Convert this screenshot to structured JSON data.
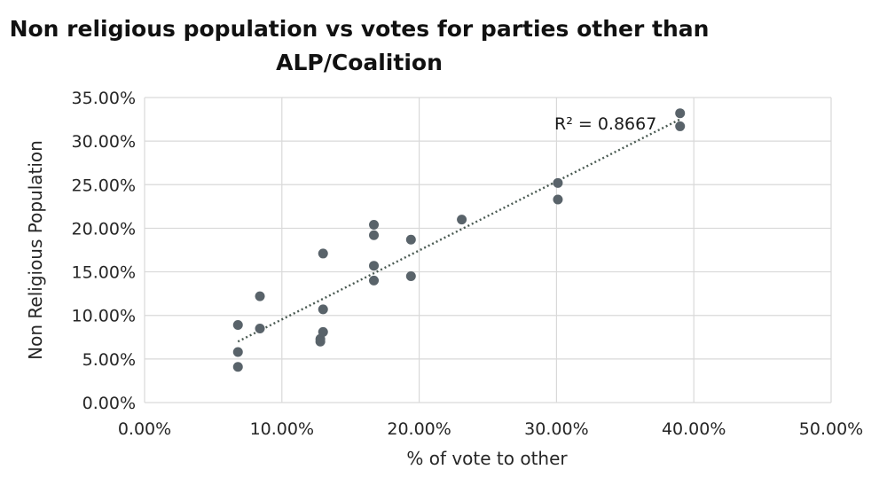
{
  "chart_data": {
    "type": "scatter",
    "title_line1": "Non religious population vs votes for parties other than",
    "title_line2": "ALP/Coalition",
    "xlabel": "% of vote to other",
    "ylabel": "Non Religious Population",
    "xlim": [
      0,
      50
    ],
    "ylim": [
      0,
      35
    ],
    "x_ticks": [
      "0.00%",
      "10.00%",
      "20.00%",
      "30.00%",
      "40.00%",
      "50.00%"
    ],
    "y_ticks": [
      "0.00%",
      "5.00%",
      "10.00%",
      "15.00%",
      "20.00%",
      "25.00%",
      "30.00%",
      "35.00%"
    ],
    "grid": true,
    "points": [
      {
        "x": 6.8,
        "y": 8.9
      },
      {
        "x": 6.8,
        "y": 5.8
      },
      {
        "x": 6.8,
        "y": 4.1
      },
      {
        "x": 8.4,
        "y": 12.2
      },
      {
        "x": 8.4,
        "y": 8.5
      },
      {
        "x": 12.8,
        "y": 7.3
      },
      {
        "x": 12.8,
        "y": 7.0
      },
      {
        "x": 13.0,
        "y": 17.1
      },
      {
        "x": 13.0,
        "y": 10.7
      },
      {
        "x": 13.0,
        "y": 8.1
      },
      {
        "x": 16.7,
        "y": 20.4
      },
      {
        "x": 16.7,
        "y": 19.2
      },
      {
        "x": 16.7,
        "y": 15.7
      },
      {
        "x": 16.7,
        "y": 14.0
      },
      {
        "x": 19.4,
        "y": 18.7
      },
      {
        "x": 19.4,
        "y": 14.5
      },
      {
        "x": 23.1,
        "y": 21.0
      },
      {
        "x": 30.1,
        "y": 25.2
      },
      {
        "x": 30.1,
        "y": 23.3
      },
      {
        "x": 39.0,
        "y": 33.2
      },
      {
        "x": 39.0,
        "y": 31.7
      }
    ],
    "trendline": {
      "type": "linear",
      "x_range": [
        6.8,
        39.0
      ],
      "y_range": [
        7.0,
        32.5
      ],
      "style": "dotted"
    },
    "r2_label": "R² = 0.8667",
    "colors": {
      "points": "#59636a",
      "trendline": "#4a5a52",
      "grid": "#d9d9d9"
    }
  }
}
